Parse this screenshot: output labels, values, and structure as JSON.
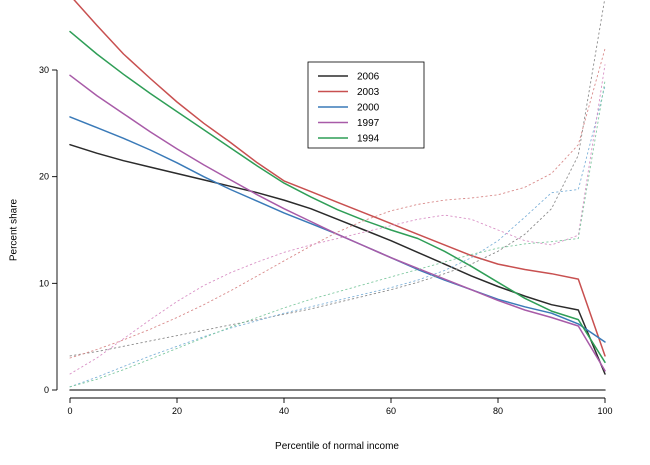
{
  "figure": {
    "background": "#ffffff"
  },
  "chart_data": {
    "type": "line",
    "title": "",
    "xlabel": "Percentile of normal income",
    "ylabel": "Percent share",
    "xlim": [
      0,
      100
    ],
    "ylim": [
      0,
      37
    ],
    "xticks": [
      0,
      20,
      40,
      60,
      80,
      100
    ],
    "yticks": [
      0,
      10,
      20,
      30
    ],
    "grid": false,
    "axis_color": "#000000",
    "legend": {
      "position": "top-center",
      "entries": [
        {
          "label": "2006",
          "color": "#2b2b2b"
        },
        {
          "label": "2003",
          "color": "#c85050"
        },
        {
          "label": "2000",
          "color": "#3a7ab8"
        },
        {
          "label": "1997",
          "color": "#a85ba8"
        },
        {
          "label": "1994",
          "color": "#2f9e57"
        }
      ]
    },
    "x": [
      0,
      5,
      10,
      15,
      20,
      25,
      30,
      35,
      40,
      45,
      50,
      55,
      60,
      65,
      70,
      75,
      80,
      85,
      90,
      95,
      100
    ],
    "series": [
      {
        "name": "2006-share",
        "style": "solid",
        "color": "#2b2b2b",
        "values": [
          23.0,
          22.2,
          21.5,
          20.9,
          20.3,
          19.7,
          19.1,
          18.5,
          17.8,
          17.0,
          16.0,
          15.0,
          14.0,
          12.9,
          11.8,
          10.7,
          9.7,
          8.8,
          8.0,
          7.5,
          1.5
        ]
      },
      {
        "name": "2003-share",
        "style": "solid",
        "color": "#c85050",
        "values": [
          37.0,
          34.2,
          31.5,
          29.2,
          27.0,
          25.0,
          23.2,
          21.3,
          19.6,
          18.6,
          17.6,
          16.6,
          15.6,
          14.6,
          13.6,
          12.6,
          11.8,
          11.3,
          10.9,
          10.4,
          3.2
        ]
      },
      {
        "name": "2000-share",
        "style": "solid",
        "color": "#3a7ab8",
        "values": [
          25.6,
          24.6,
          23.6,
          22.5,
          21.3,
          20.0,
          18.8,
          17.7,
          16.6,
          15.6,
          14.6,
          13.5,
          12.4,
          11.3,
          10.3,
          9.4,
          8.5,
          7.8,
          7.2,
          6.2,
          4.5
        ]
      },
      {
        "name": "1997-share",
        "style": "solid",
        "color": "#a85ba8",
        "values": [
          29.5,
          27.6,
          25.9,
          24.2,
          22.6,
          21.1,
          19.7,
          18.3,
          17.0,
          15.8,
          14.6,
          13.5,
          12.4,
          11.4,
          10.4,
          9.4,
          8.4,
          7.5,
          6.8,
          6.0,
          1.8
        ]
      },
      {
        "name": "1994-share",
        "style": "solid",
        "color": "#2f9e57",
        "values": [
          33.6,
          31.5,
          29.6,
          27.8,
          26.1,
          24.4,
          22.7,
          21.0,
          19.4,
          18.1,
          16.9,
          15.9,
          15.0,
          14.2,
          13.0,
          11.6,
          10.1,
          8.6,
          7.4,
          6.6,
          2.6
        ]
      },
      {
        "name": "2006-dotted",
        "style": "dotted",
        "color": "#8a8a8a",
        "values": [
          3.2,
          3.6,
          4.1,
          4.6,
          5.1,
          5.6,
          6.1,
          6.6,
          7.1,
          7.6,
          8.2,
          8.8,
          9.4,
          10.1,
          10.9,
          11.8,
          13.0,
          14.6,
          17.0,
          22.0,
          36.8
        ]
      },
      {
        "name": "2003-dotted",
        "style": "dotted",
        "color": "#d98b8b",
        "values": [
          3.0,
          3.8,
          4.7,
          5.7,
          6.8,
          8.0,
          9.3,
          10.7,
          12.1,
          13.5,
          14.8,
          15.9,
          16.8,
          17.4,
          17.8,
          18.0,
          18.3,
          19.0,
          20.3,
          23.0,
          32.0
        ]
      },
      {
        "name": "2000-dotted",
        "style": "dotted",
        "color": "#7fb2d9",
        "values": [
          0.3,
          1.2,
          2.2,
          3.2,
          4.1,
          5.0,
          5.8,
          6.5,
          7.2,
          7.8,
          8.4,
          9.0,
          9.6,
          10.3,
          11.2,
          12.4,
          14.0,
          16.2,
          18.5,
          18.8,
          28.5
        ]
      },
      {
        "name": "1997-dotted",
        "style": "dotted",
        "color": "#d991c6",
        "values": [
          1.5,
          3.0,
          4.8,
          6.6,
          8.3,
          9.8,
          11.0,
          12.0,
          12.9,
          13.6,
          14.2,
          14.8,
          15.4,
          16.0,
          16.4,
          16.0,
          15.0,
          14.0,
          13.6,
          14.5,
          30.5
        ]
      },
      {
        "name": "1994-dotted",
        "style": "dotted",
        "color": "#7fc9a0",
        "values": [
          0.3,
          1.0,
          1.9,
          2.9,
          3.9,
          4.9,
          5.9,
          6.8,
          7.7,
          8.5,
          9.2,
          9.9,
          10.6,
          11.3,
          12.0,
          12.7,
          13.3,
          13.7,
          13.9,
          14.2,
          29.0
        ]
      },
      {
        "name": "zero-baseline",
        "style": "solid",
        "color": "#555555",
        "values": [
          0,
          0,
          0,
          0,
          0,
          0,
          0,
          0,
          0,
          0,
          0,
          0,
          0,
          0,
          0,
          0,
          0,
          0,
          0,
          0,
          0
        ]
      }
    ]
  }
}
